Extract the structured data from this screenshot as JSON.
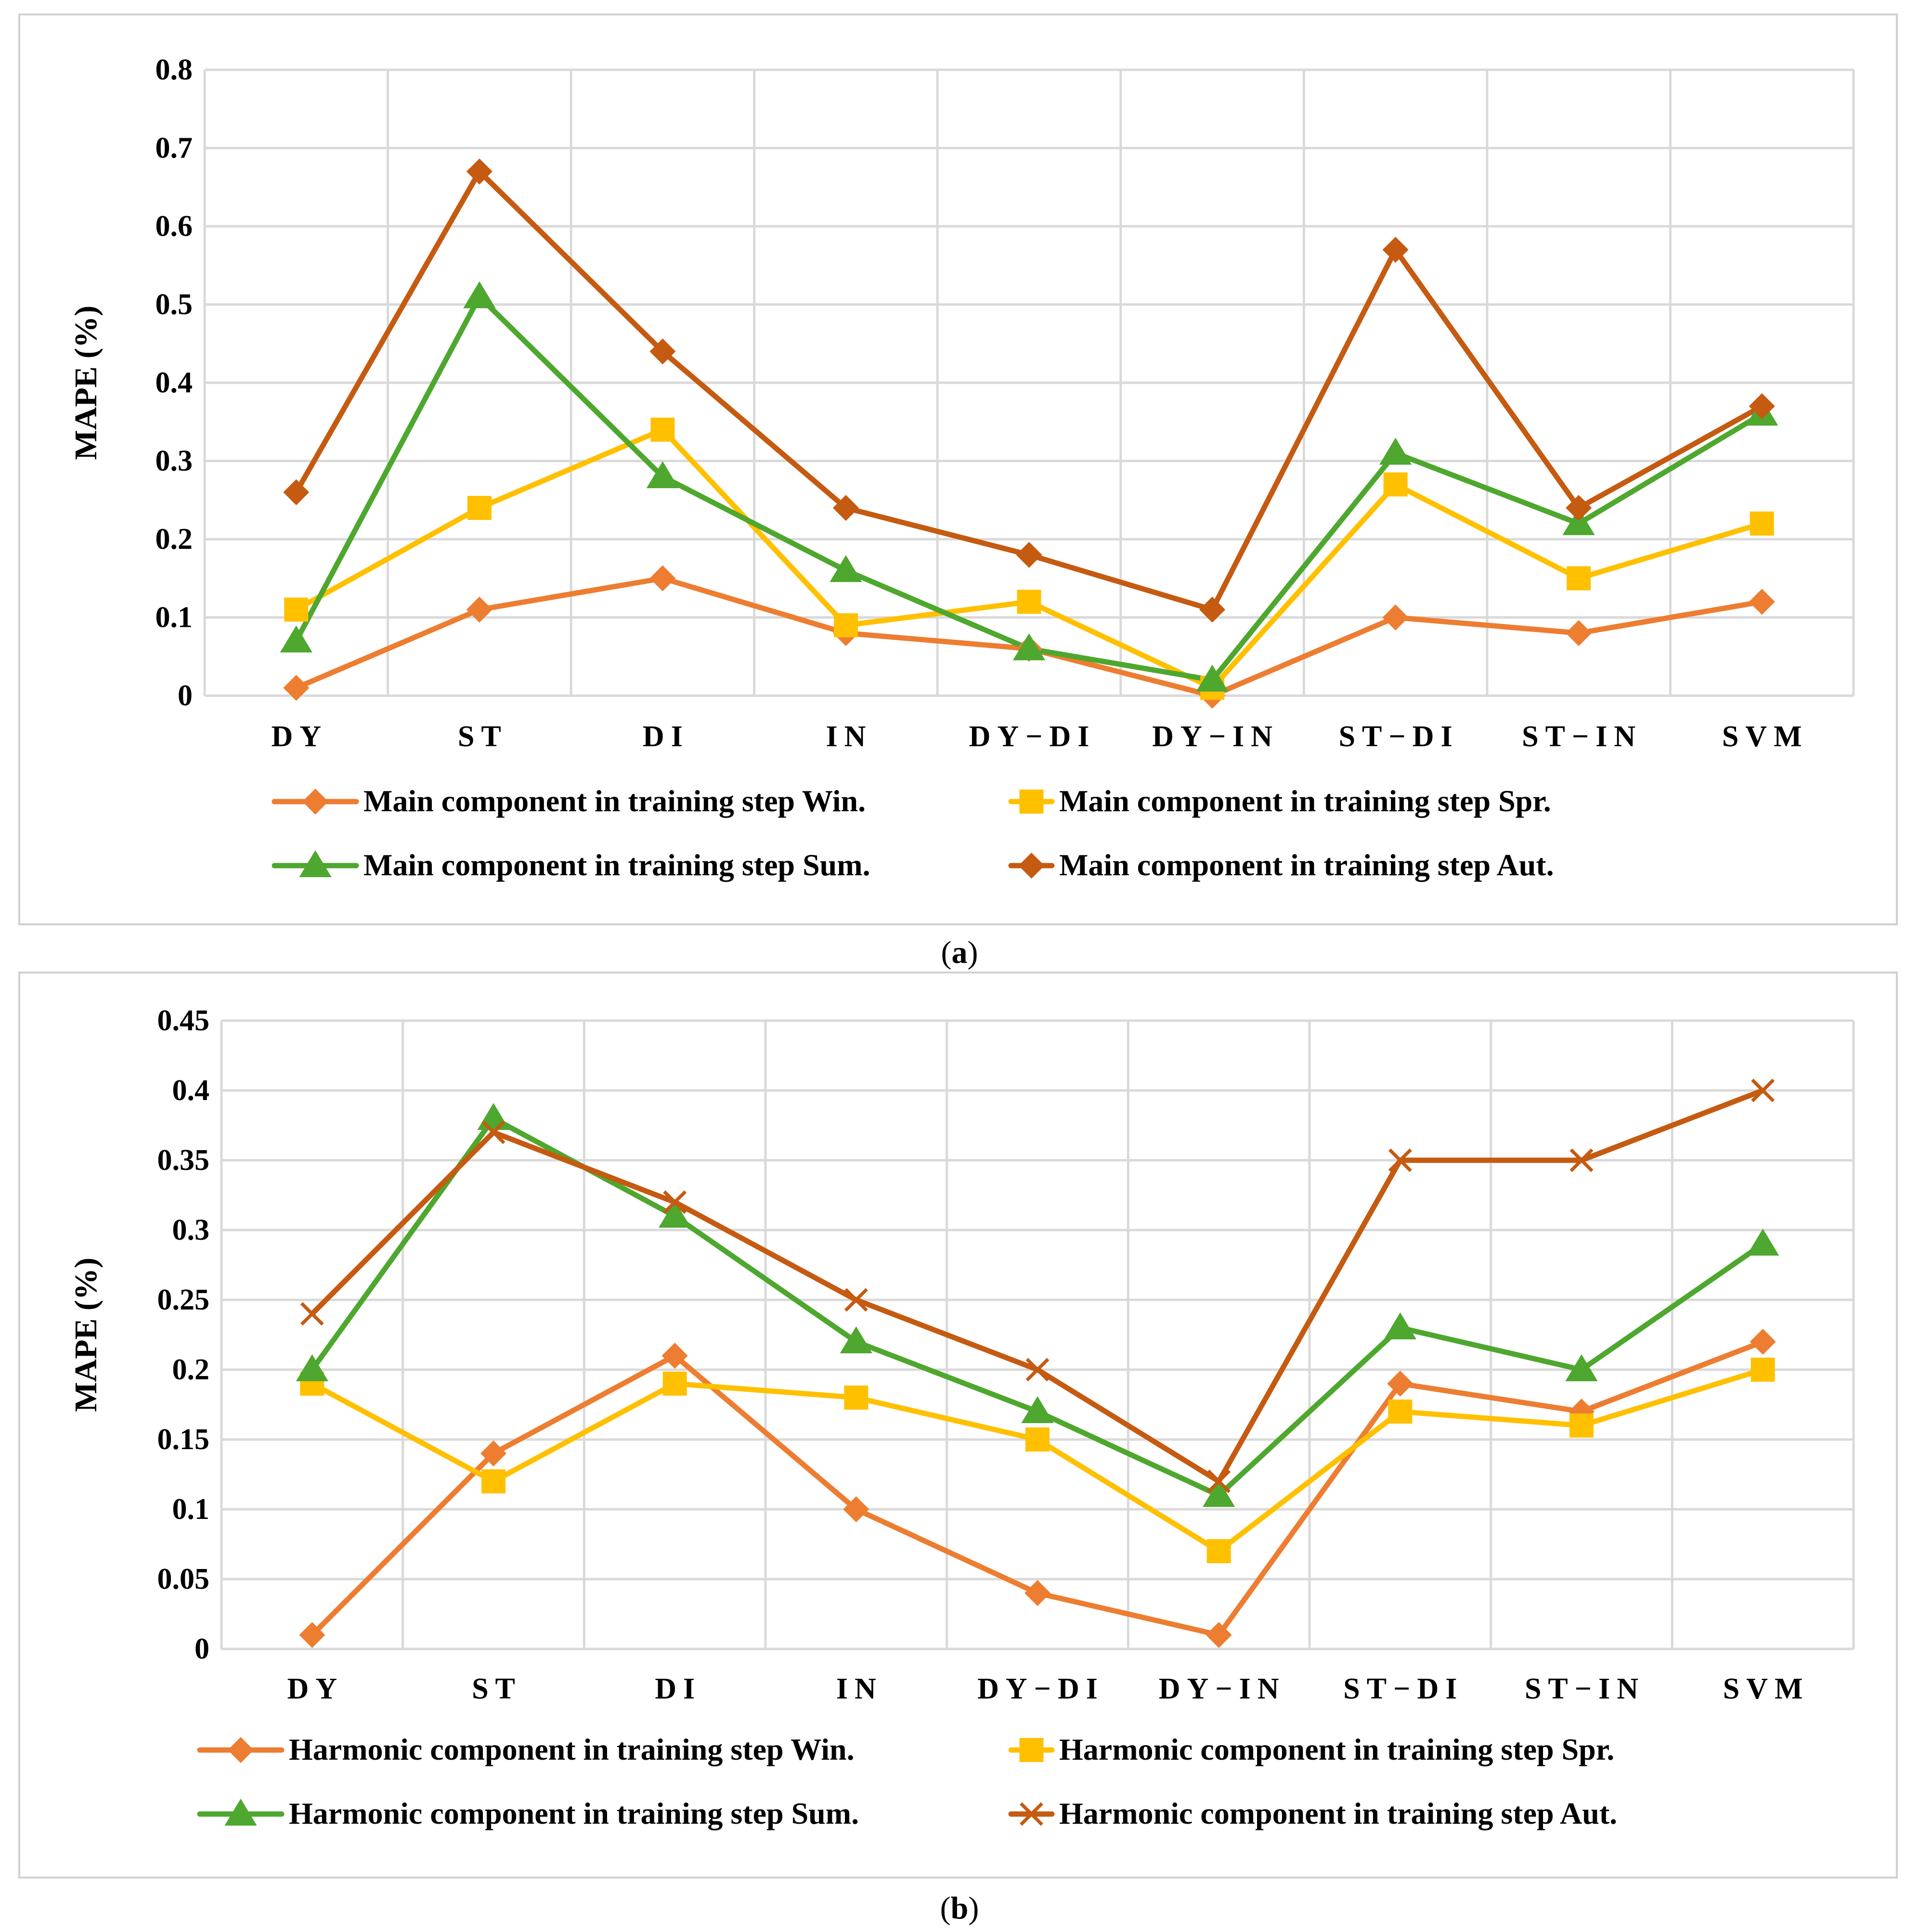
{
  "colors": {
    "win": "#ED7D31",
    "spr": "#FFC000",
    "sum": "#4EA72E",
    "aut": "#C55A11"
  },
  "chart_data": [
    {
      "type": "line",
      "caption": "a",
      "categories": [
        "DY",
        "ST",
        "DI",
        "IN",
        "DY−DI",
        "DY−IN",
        "ST−DI",
        "ST−IN",
        "SVM"
      ],
      "ylabel": "MAPE (%)",
      "ylim": [
        0,
        0.8
      ],
      "yticks": [
        0,
        0.1,
        0.2,
        0.3,
        0.4,
        0.5,
        0.6,
        0.7,
        0.8
      ],
      "ytick_labels": [
        "0",
        "0.1",
        "0.2",
        "0.3",
        "0.4",
        "0.5",
        "0.6",
        "0.7",
        "0.8"
      ],
      "grid": true,
      "legend_position": "bottom",
      "series": [
        {
          "name": "Main component in training step Win.",
          "color": "#ED7D31",
          "marker": "diamond",
          "values": [
            0.01,
            0.11,
            0.15,
            0.08,
            0.06,
            0.0,
            0.1,
            0.08,
            0.12
          ]
        },
        {
          "name": "Main component in training step Spr.",
          "color": "#FFC000",
          "marker": "square",
          "values": [
            0.11,
            0.24,
            0.34,
            0.09,
            0.12,
            0.01,
            0.27,
            0.15,
            0.22
          ]
        },
        {
          "name": "Main component in training step Sum.",
          "color": "#4EA72E",
          "marker": "triangle",
          "values": [
            0.07,
            0.51,
            0.28,
            0.16,
            0.06,
            0.02,
            0.31,
            0.22,
            0.36
          ]
        },
        {
          "name": "Main component in training step Aut.",
          "color": "#C55A11",
          "marker": "diamond",
          "values": [
            0.26,
            0.67,
            0.44,
            0.24,
            0.18,
            0.11,
            0.57,
            0.24,
            0.37
          ]
        }
      ]
    },
    {
      "type": "line",
      "caption": "b",
      "categories": [
        "DY",
        "ST",
        "DI",
        "IN",
        "DY−DI",
        "DY−IN",
        "ST−DI",
        "ST−IN",
        "SVM"
      ],
      "ylabel": "MAPE (%)",
      "ylim": [
        0,
        0.45
      ],
      "yticks": [
        0,
        0.05,
        0.1,
        0.15,
        0.2,
        0.25,
        0.3,
        0.35,
        0.4,
        0.45
      ],
      "ytick_labels": [
        "0",
        "0.05",
        "0.1",
        "0.15",
        "0.2",
        "0.25",
        "0.3",
        "0.35",
        "0.4",
        "0.45"
      ],
      "grid": true,
      "legend_position": "bottom",
      "series": [
        {
          "name": "Harmonic component in training step Win.",
          "color": "#ED7D31",
          "marker": "diamond",
          "values": [
            0.01,
            0.14,
            0.21,
            0.1,
            0.04,
            0.01,
            0.19,
            0.17,
            0.22
          ]
        },
        {
          "name": "Harmonic component in training step Spr.",
          "color": "#FFC000",
          "marker": "square",
          "values": [
            0.19,
            0.12,
            0.19,
            0.18,
            0.15,
            0.07,
            0.17,
            0.16,
            0.2
          ]
        },
        {
          "name": "Harmonic component in training step Sum.",
          "color": "#4EA72E",
          "marker": "triangle",
          "values": [
            0.2,
            0.38,
            0.31,
            0.22,
            0.17,
            0.11,
            0.23,
            0.2,
            0.29
          ]
        },
        {
          "name": "Harmonic component in training step Aut.",
          "color": "#C55A11",
          "marker": "x",
          "values": [
            0.24,
            0.37,
            0.32,
            0.25,
            0.2,
            0.12,
            0.35,
            0.35,
            0.4
          ]
        }
      ]
    }
  ]
}
